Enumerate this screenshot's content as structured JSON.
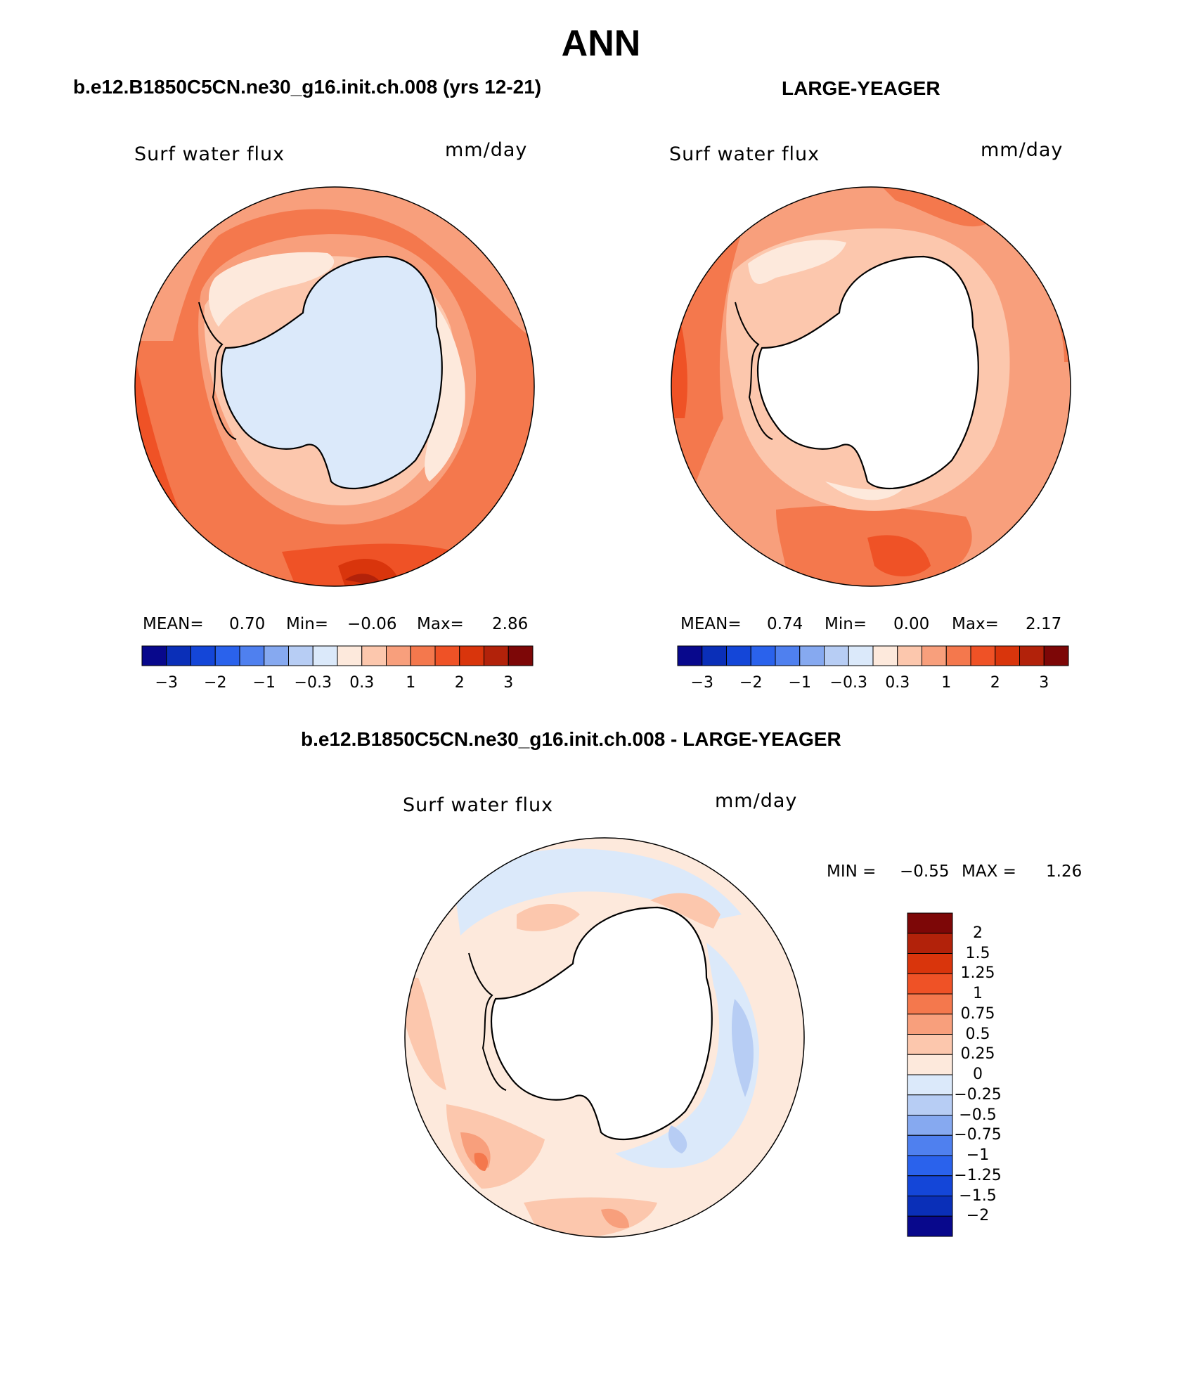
{
  "title": "ANN",
  "panels": [
    {
      "id": "top-left",
      "title": "b.e12.B1850C5CN.ne30_g16.init.ch.008 (yrs 12-21)",
      "variable": "Surf water flux",
      "units": "mm/day",
      "stats": {
        "mean_label": "MEAN=",
        "mean": "0.70",
        "min_label": "Min=",
        "min": "−0.06",
        "max_label": "Max=",
        "max": "2.86"
      }
    },
    {
      "id": "top-right",
      "title": "LARGE-YEAGER",
      "variable": "Surf water flux",
      "units": "mm/day",
      "stats": {
        "mean_label": "MEAN=",
        "mean": "0.74",
        "min_label": "Min=",
        "min": "0.00",
        "max_label": "Max=",
        "max": "2.17"
      }
    },
    {
      "id": "bottom",
      "title": "b.e12.B1850C5CN.ne30_g16.init.ch.008 - LARGE-YEAGER",
      "variable": "Surf water flux",
      "units": "mm/day",
      "stats": {
        "min_label": "MIN =",
        "min": "−0.55",
        "max_label": "MAX =",
        "max": "1.26"
      }
    }
  ],
  "colorbar_abs": {
    "colors": [
      "#08088c",
      "#0a2fb8",
      "#1446d8",
      "#2a62ec",
      "#4f80ef",
      "#86a9f0",
      "#b7cdf4",
      "#dbe9fa",
      "#fde9dc",
      "#fcc7ad",
      "#f89f7c",
      "#f4784d",
      "#ef5226",
      "#d9350c",
      "#b2220a",
      "#7d0707"
    ],
    "labels": [
      "−3",
      "−2",
      "−1",
      "−0.3",
      "0.3",
      "1",
      "2",
      "3"
    ]
  },
  "colorbar_diff": {
    "colors": [
      "#7d0707",
      "#b2220a",
      "#d9350c",
      "#ef5226",
      "#f4784d",
      "#f89f7c",
      "#fcc7ad",
      "#fde9dc",
      "#dbe9fa",
      "#b7cdf4",
      "#86a9f0",
      "#4f80ef",
      "#2a62ec",
      "#1446d8",
      "#0a2fb8",
      "#08088c"
    ],
    "labels": [
      "2",
      "1.5",
      "1.25",
      "1",
      "0.75",
      "0.5",
      "0.25",
      "0",
      "−0.25",
      "−0.5",
      "−0.75",
      "−1",
      "−1.25",
      "−1.5",
      "−2"
    ]
  }
}
